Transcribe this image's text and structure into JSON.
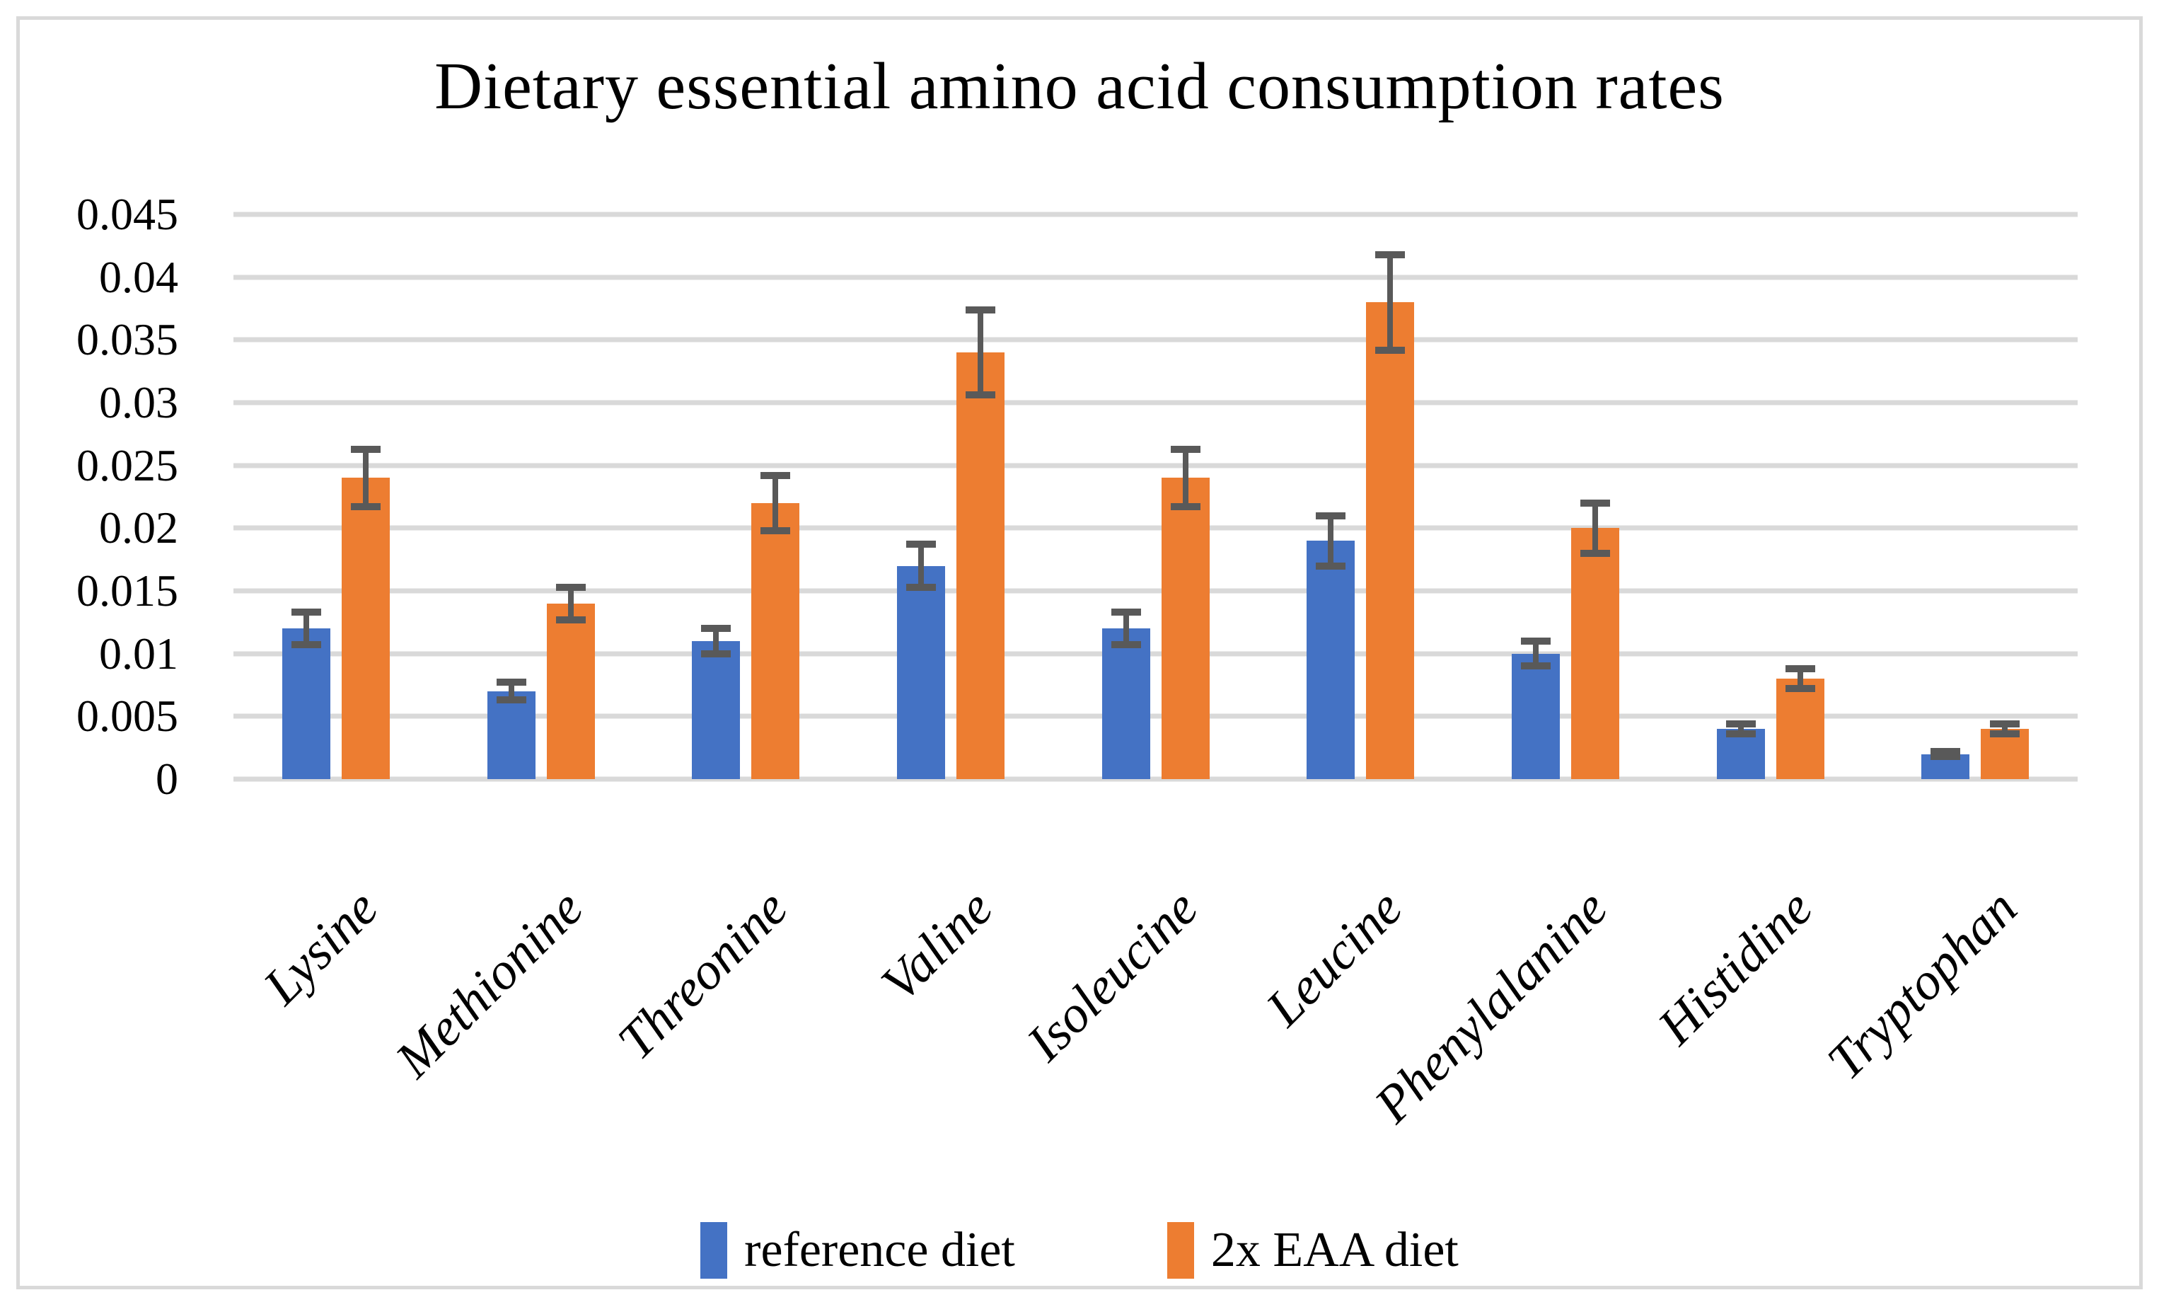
{
  "title": "Dietary essential amino acid consumption rates",
  "legend": {
    "items": [
      {
        "label": "reference diet",
        "color": "#4472C4"
      },
      {
        "label": "2x EAA diet",
        "color": "#ED7D31"
      }
    ]
  },
  "colors": {
    "reference_diet": "#4472C4",
    "eaa_diet": "#ED7D31",
    "error_bar": "#595959",
    "gridline": "#D9D9D9",
    "frame_border": "#D9D9D9",
    "text": "#000000"
  },
  "chart_data": {
    "type": "bar",
    "title": "Dietary essential amino acid consumption rates",
    "categories": [
      "Lysine",
      "Methionine",
      "Threonine",
      "Valine",
      "Isoleucine",
      "Leucine",
      "Phenylalanine",
      "Histidine",
      "Tryptophan"
    ],
    "series": [
      {
        "name": "reference diet",
        "color": "#4472C4",
        "values": [
          0.012,
          0.007,
          0.011,
          0.017,
          0.012,
          0.019,
          0.01,
          0.004,
          0.002
        ],
        "errors": [
          0.0013,
          0.0007,
          0.001,
          0.0017,
          0.0013,
          0.002,
          0.001,
          0.0004,
          0.0002
        ]
      },
      {
        "name": "2x EAA diet",
        "color": "#ED7D31",
        "values": [
          0.024,
          0.014,
          0.022,
          0.034,
          0.024,
          0.038,
          0.02,
          0.008,
          0.004
        ],
        "errors": [
          0.0023,
          0.0013,
          0.0022,
          0.0034,
          0.0023,
          0.0038,
          0.002,
          0.0008,
          0.0004
        ]
      }
    ],
    "xlabel": "",
    "ylabel": "",
    "ylim": [
      0,
      0.045
    ],
    "ytick_step": 0.005,
    "yticks": [
      "0",
      "0.005",
      "0.01",
      "0.015",
      "0.02",
      "0.025",
      "0.03",
      "0.035",
      "0.04",
      "0.045"
    ],
    "grid": true,
    "error_bars": true,
    "legend_position": "bottom",
    "x_label_rotation_deg": 45
  }
}
